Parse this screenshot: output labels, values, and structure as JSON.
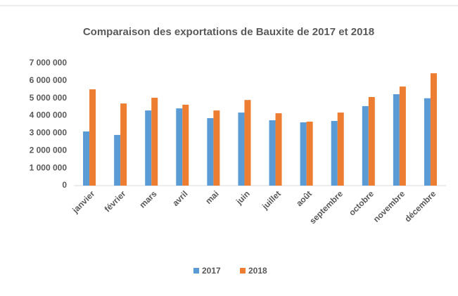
{
  "chart_data": {
    "type": "bar",
    "title": "Comparaison des exportations de Bauxite de 2017 et 2018",
    "categories": [
      "janvier",
      "février",
      "mars",
      "avril",
      "mai",
      "juin",
      "juillet",
      "août",
      "septembre",
      "octobre",
      "novembre",
      "décembre"
    ],
    "series": [
      {
        "name": "2017",
        "color": "#5b9bd5",
        "values": [
          3100000,
          2900000,
          4300000,
          4420000,
          3860000,
          4180000,
          3740000,
          3620000,
          3700000,
          4550000,
          5230000,
          5000000
        ]
      },
      {
        "name": "2018",
        "color": "#ed7d31",
        "values": [
          5510000,
          4700000,
          5030000,
          4630000,
          4300000,
          4900000,
          4140000,
          3660000,
          4180000,
          5070000,
          5670000,
          6430000
        ]
      }
    ],
    "ylim": [
      0,
      7000000
    ],
    "yticks": [
      0,
      {
        "value": 1000000,
        "label": "1 000 000"
      },
      {
        "value": 2000000,
        "label": "2 000 000"
      },
      {
        "value": 3000000,
        "label": "3 000 000"
      },
      {
        "value": 4000000,
        "label": "4 000 000"
      },
      {
        "value": 5000000,
        "label": "5 000 000"
      },
      {
        "value": 6000000,
        "label": "6 000 000"
      },
      {
        "value": 7000000,
        "label": "7 000 000"
      }
    ],
    "grid": false,
    "legend": "bottom"
  }
}
